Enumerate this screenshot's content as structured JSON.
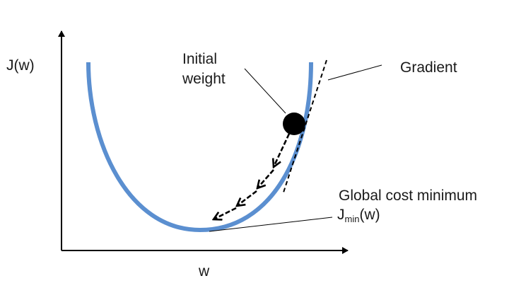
{
  "colors": {
    "curve": "#5b8fd0",
    "ink": "#000000",
    "text": "#1a1a1a"
  },
  "axes": {
    "y_label": "J(w)",
    "x_label": "w"
  },
  "labels": {
    "initial_weight_line1": "Initial",
    "initial_weight_line2": "weight",
    "gradient": "Gradient",
    "global_min": "Global cost minimum",
    "jmin_prefix": "J",
    "jmin_sub": "min",
    "jmin_suffix": "(w)"
  },
  "icons": {
    "weight_point": "filled-circle",
    "descent_steps": "arrow-left-down"
  }
}
